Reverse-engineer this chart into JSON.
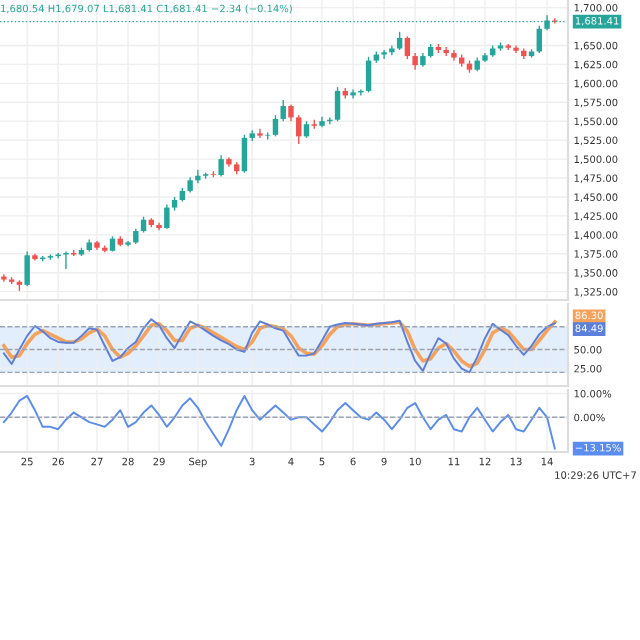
{
  "chart_data": [
    {
      "type": "candlestick",
      "title": "1,680.54 H1,679.07 L1,681.41 C1,681.41 −2.34 (−0.14%)",
      "categories": [
        null,
        null,
        null,
        null,
        null,
        null,
        null,
        null,
        null,
        null,
        null,
        null,
        null,
        null,
        null,
        null,
        null,
        null,
        null,
        null,
        null,
        null,
        null,
        null,
        null,
        null,
        null,
        null,
        null,
        null,
        null,
        null,
        null,
        null,
        null,
        null,
        null,
        null,
        null,
        null,
        null,
        null,
        null,
        null,
        null,
        null,
        null,
        null,
        null,
        null,
        null,
        null,
        null,
        null,
        null,
        null,
        null,
        null,
        null,
        null,
        null,
        null,
        null,
        null,
        null,
        null,
        null,
        null,
        null,
        null,
        null,
        null
      ],
      "ohlc": [
        [
          1345,
          1348,
          1338,
          1341
        ],
        [
          1341,
          1344,
          1335,
          1338
        ],
        [
          1338,
          1340,
          1326,
          1334
        ],
        [
          1334,
          1378,
          1332,
          1373
        ],
        [
          1373,
          1375,
          1366,
          1368
        ],
        [
          1368,
          1372,
          1365,
          1370
        ],
        [
          1370,
          1374,
          1367,
          1372
        ],
        [
          1372,
          1376,
          1369,
          1374
        ],
        [
          1374,
          1378,
          1355,
          1376
        ],
        [
          1376,
          1380,
          1372,
          1374
        ],
        [
          1374,
          1383,
          1372,
          1380
        ],
        [
          1380,
          1394,
          1378,
          1390
        ],
        [
          1390,
          1392,
          1380,
          1383
        ],
        [
          1383,
          1386,
          1377,
          1379
        ],
        [
          1379,
          1398,
          1378,
          1395
        ],
        [
          1395,
          1398,
          1385,
          1387
        ],
        [
          1387,
          1392,
          1385,
          1390
        ],
        [
          1390,
          1408,
          1388,
          1405
        ],
        [
          1405,
          1424,
          1403,
          1420
        ],
        [
          1420,
          1422,
          1410,
          1413
        ],
        [
          1413,
          1416,
          1406,
          1409
        ],
        [
          1409,
          1440,
          1408,
          1436
        ],
        [
          1436,
          1450,
          1432,
          1446
        ],
        [
          1446,
          1462,
          1444,
          1458
        ],
        [
          1458,
          1476,
          1456,
          1472
        ],
        [
          1472,
          1486,
          1468,
          1478
        ],
        [
          1478,
          1482,
          1474,
          1480
        ],
        [
          1480,
          1484,
          1476,
          1479
        ],
        [
          1479,
          1505,
          1477,
          1500
        ],
        [
          1500,
          1502,
          1490,
          1493
        ],
        [
          1493,
          1496,
          1480,
          1484
        ],
        [
          1484,
          1532,
          1482,
          1528
        ],
        [
          1528,
          1538,
          1524,
          1534
        ],
        [
          1534,
          1540,
          1528,
          1531
        ],
        [
          1531,
          1535,
          1526,
          1532
        ],
        [
          1532,
          1558,
          1530,
          1553
        ],
        [
          1553,
          1578,
          1550,
          1570
        ],
        [
          1570,
          1572,
          1550,
          1555
        ],
        [
          1555,
          1558,
          1520,
          1530
        ],
        [
          1530,
          1550,
          1528,
          1546
        ],
        [
          1546,
          1552,
          1540,
          1544
        ],
        [
          1544,
          1556,
          1542,
          1550
        ],
        [
          1550,
          1555,
          1546,
          1552
        ],
        [
          1552,
          1595,
          1550,
          1590
        ],
        [
          1590,
          1594,
          1580,
          1584
        ],
        [
          1584,
          1592,
          1580,
          1588
        ],
        [
          1588,
          1592,
          1584,
          1590
        ],
        [
          1590,
          1635,
          1588,
          1630
        ],
        [
          1630,
          1642,
          1627,
          1638
        ],
        [
          1638,
          1644,
          1632,
          1641
        ],
        [
          1641,
          1650,
          1637,
          1646
        ],
        [
          1646,
          1668,
          1644,
          1660
        ],
        [
          1660,
          1662,
          1632,
          1636
        ],
        [
          1636,
          1640,
          1618,
          1624
        ],
        [
          1624,
          1640,
          1622,
          1636
        ],
        [
          1636,
          1652,
          1634,
          1648
        ],
        [
          1648,
          1652,
          1640,
          1644
        ],
        [
          1644,
          1648,
          1636,
          1640
        ],
        [
          1640,
          1644,
          1630,
          1634
        ],
        [
          1634,
          1638,
          1622,
          1626
        ],
        [
          1626,
          1630,
          1614,
          1618
        ],
        [
          1618,
          1634,
          1616,
          1630
        ],
        [
          1630,
          1640,
          1628,
          1637
        ],
        [
          1637,
          1650,
          1635,
          1646
        ],
        [
          1646,
          1654,
          1643,
          1650
        ],
        [
          1650,
          1652,
          1644,
          1647
        ],
        [
          1647,
          1650,
          1640,
          1643
        ],
        [
          1643,
          1646,
          1632,
          1636
        ],
        [
          1636,
          1645,
          1634,
          1642
        ],
        [
          1642,
          1676,
          1640,
          1672
        ],
        [
          1672,
          1690,
          1670,
          1683
        ],
        [
          1683,
          1686,
          1679,
          1681.41
        ]
      ],
      "ylim": [
        1314,
        1710
      ],
      "yticks": [
        {
          "value": 1325,
          "label": "1,325.00"
        },
        {
          "value": 1350,
          "label": "1,350.00"
        },
        {
          "value": 1375,
          "label": "1,375.00"
        },
        {
          "value": 1400,
          "label": "1,400.00"
        },
        {
          "value": 1425,
          "label": "1,425.00"
        },
        {
          "value": 1450,
          "label": "1,450.00"
        },
        {
          "value": 1475,
          "label": "1,475.00"
        },
        {
          "value": 1500,
          "label": "1,500.00"
        },
        {
          "value": 1525,
          "label": "1,525.00"
        },
        {
          "value": 1550,
          "label": "1,550.00"
        },
        {
          "value": 1575,
          "label": "1,575.00"
        },
        {
          "value": 1600,
          "label": "1,600.00"
        },
        {
          "value": 1625,
          "label": "1,625.00"
        },
        {
          "value": 1650,
          "label": "1,650.00"
        },
        {
          "value": 1700,
          "label": "1,700.00"
        }
      ],
      "ref_lines": [
        {
          "axis": "y",
          "value": 1681.41,
          "label": "1,681.41",
          "color": "#26a69a",
          "line_style": "dotted"
        }
      ],
      "tick_labels": "y",
      "grid": true
    },
    {
      "type": "line",
      "categories": [
        null,
        null,
        null,
        null,
        null,
        null,
        null,
        null,
        null,
        null,
        null,
        null,
        null,
        null,
        null,
        null,
        null,
        null,
        null,
        null,
        null,
        null,
        null,
        null,
        null,
        null,
        null,
        null,
        null,
        null,
        null,
        null,
        null,
        null,
        null,
        null,
        null,
        null,
        null,
        null,
        null,
        null,
        null,
        null,
        null,
        null,
        null,
        null,
        null,
        null,
        null,
        null,
        null,
        null,
        null,
        null,
        null,
        null,
        null,
        null,
        null,
        null,
        null,
        null,
        null,
        null,
        null,
        null,
        null,
        null,
        null,
        null
      ],
      "ylim": [
        2,
        110
      ],
      "yticks": [
        {
          "value": 25,
          "label": "25.00"
        },
        {
          "value": 50,
          "label": "50.00"
        }
      ],
      "series": [
        {
          "color": "#f5a25d",
          "values": [
            55,
            40,
            42,
            58,
            70,
            75,
            70,
            65,
            60,
            60,
            64,
            72,
            77,
            68,
            50,
            40,
            45,
            55,
            68,
            82,
            84,
            75,
            62,
            62,
            78,
            82,
            78,
            72,
            66,
            60,
            54,
            50,
            60,
            78,
            82,
            80,
            77,
            68,
            52,
            45,
            44,
            55,
            70,
            80,
            83,
            84,
            83,
            82,
            83,
            84,
            85,
            86,
            74,
            50,
            35,
            38,
            52,
            58,
            48,
            35,
            28,
            32,
            50,
            72,
            78,
            74,
            62,
            50,
            50,
            62,
            75,
            86.3
          ]
        },
        {
          "color": "#5b7fdb",
          "values": [
            45,
            31,
            50,
            68,
            81,
            74,
            65,
            60,
            59,
            59,
            68,
            78,
            76,
            55,
            35,
            40,
            52,
            60,
            78,
            90,
            82,
            65,
            52,
            70,
            87,
            82,
            75,
            68,
            62,
            57,
            50,
            47,
            72,
            87,
            83,
            78,
            75,
            58,
            42,
            42,
            45,
            62,
            80,
            83,
            85,
            84,
            83,
            82,
            84,
            85,
            86,
            88,
            60,
            35,
            22,
            45,
            65,
            58,
            38,
            25,
            20,
            40,
            65,
            84,
            76,
            69,
            55,
            43,
            55,
            70,
            80,
            84.49
          ]
        }
      ],
      "bands": [
        {
          "axis": "y",
          "from": 20,
          "to": 80,
          "color": "#e3eefc"
        }
      ],
      "ref_lines": [
        {
          "axis": "y",
          "value": 80,
          "color": "#9aa3b5",
          "line_style": "dashed"
        },
        {
          "axis": "y",
          "value": 50,
          "color": "#9aa3b5",
          "line_style": "dashed"
        },
        {
          "axis": "y",
          "value": 20,
          "color": "#9aa3b5",
          "line_style": "dashed"
        }
      ],
      "annotations": [
        "86.30",
        "84.49"
      ],
      "tick_labels": "y",
      "grid": true
    },
    {
      "type": "line",
      "categories": [
        null,
        null,
        null,
        "25",
        null,
        null,
        null,
        "26",
        null,
        null,
        null,
        null,
        "27",
        null,
        null,
        null,
        "28",
        null,
        null,
        null,
        "29",
        null,
        null,
        null,
        null,
        "Sep",
        null,
        null,
        null,
        null,
        null,
        null,
        "3",
        null,
        null,
        null,
        null,
        "4",
        null,
        null,
        null,
        "5",
        null,
        null,
        null,
        "6",
        null,
        null,
        null,
        "9",
        null,
        null,
        null,
        "10",
        null,
        null,
        null,
        null,
        "11",
        null,
        null,
        null,
        "12",
        null,
        null,
        null,
        "13",
        null,
        null,
        null,
        "14",
        null
      ],
      "ylim": [
        -14.6,
        11.5
      ],
      "yticks": [
        {
          "value": 0,
          "label": "0.00%"
        },
        {
          "value": 10,
          "label": "10.00%"
        }
      ],
      "series": [
        {
          "color": "#5b8def",
          "values": [
            -2,
            2,
            7,
            9,
            3,
            -4,
            -4,
            -5,
            -1,
            2,
            0,
            -2,
            -3,
            -4,
            -1,
            3,
            -4,
            -2,
            2,
            5,
            1,
            -4,
            0,
            5,
            8,
            4,
            -2,
            -7,
            -12,
            -5,
            3,
            9,
            3,
            -1,
            2,
            5,
            2,
            -1,
            0,
            0,
            -3,
            -6,
            -2,
            3,
            6,
            3,
            0,
            -1,
            2,
            -1,
            -5,
            -1,
            4,
            6,
            0,
            -5,
            -1,
            1,
            -5,
            -6,
            0,
            4,
            -1,
            -6,
            -2,
            1,
            -5,
            -6,
            -1,
            4,
            0,
            -13.15
          ]
        }
      ],
      "ref_lines": [
        {
          "axis": "y",
          "value": 0,
          "color": "#9aa3b5",
          "line_style": "dashed"
        }
      ],
      "annotations": [
        {
          "text": "−13.15%",
          "x": "14",
          "y": -13.15
        },
        "10:29:26 UTC+7"
      ],
      "grid": true
    }
  ]
}
